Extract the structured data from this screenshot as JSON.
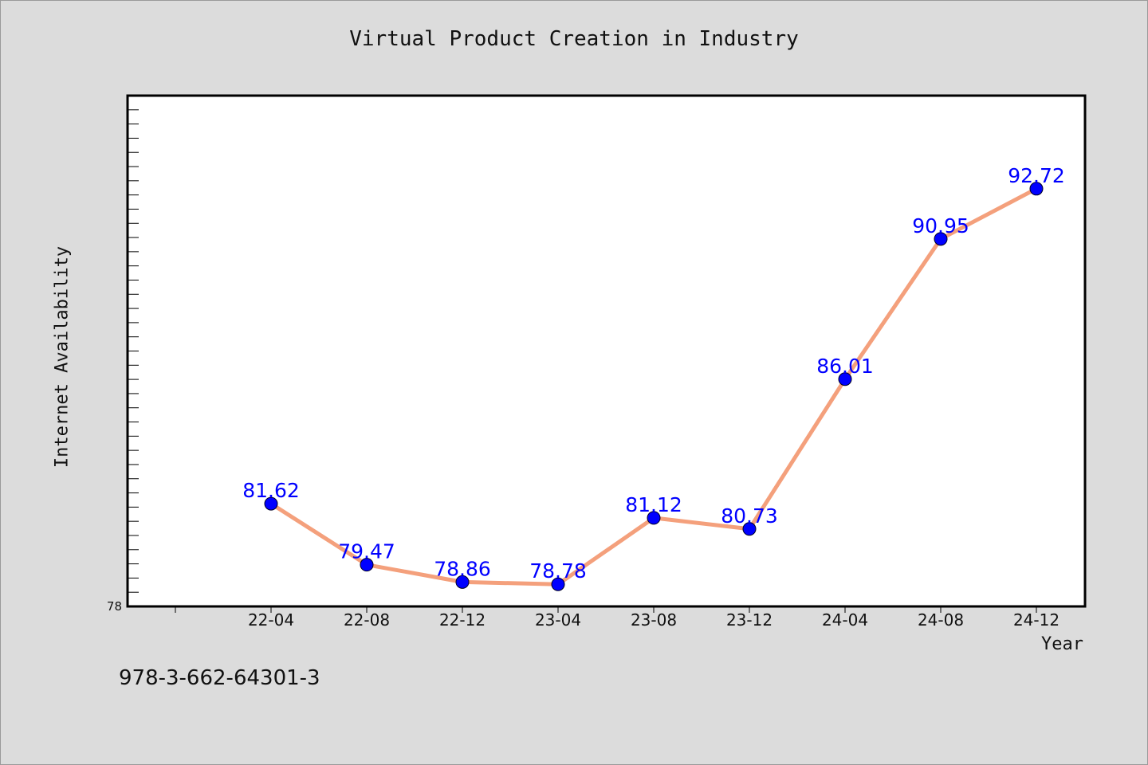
{
  "chart_data": {
    "type": "line",
    "title": "Virtual Product Creation in Industry",
    "xlabel": "Year",
    "ylabel": "Internet Availability",
    "categories": [
      "22-04",
      "22-08",
      "22-12",
      "23-04",
      "23-08",
      "23-12",
      "24-04",
      "24-08",
      "24-12"
    ],
    "series": [
      {
        "values": [
          81.62,
          79.47,
          78.86,
          78.78,
          81.12,
          80.73,
          86.01,
          90.95,
          92.72
        ]
      }
    ],
    "ylim": [
      78,
      96
    ],
    "yticks_labeled": [
      "78"
    ],
    "line_color": "#f4a07c",
    "marker_color": "#0000ff",
    "label_color": "#0000ff",
    "data_labels": true,
    "grid": false
  },
  "footer": {
    "isbn": "978-3-662-64301-3"
  }
}
